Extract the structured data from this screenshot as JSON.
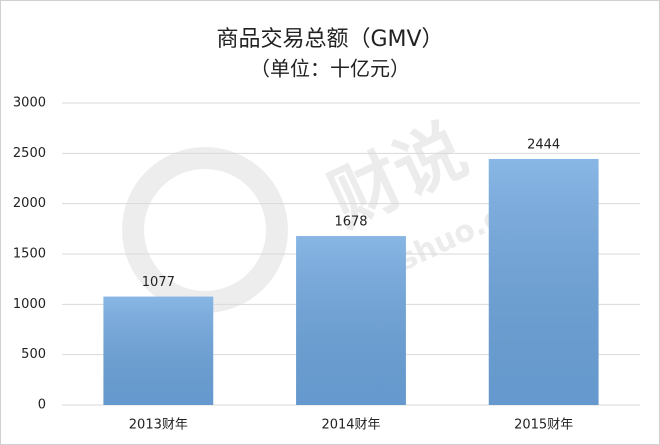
{
  "chart_data": {
    "type": "bar",
    "title": "商品交易总额（GMV）",
    "subtitle": "（单位：十亿元）",
    "categories": [
      "2013财年",
      "2014财年",
      "2015财年"
    ],
    "values": [
      1077,
      1678,
      2444
    ],
    "color": "#6ea6df",
    "ylim": [
      0,
      3000
    ],
    "yticks": [
      0,
      500,
      1000,
      1500,
      2000,
      2500,
      3000
    ],
    "grid": true,
    "watermark": [
      "财说",
      "Caishuo.com"
    ]
  }
}
